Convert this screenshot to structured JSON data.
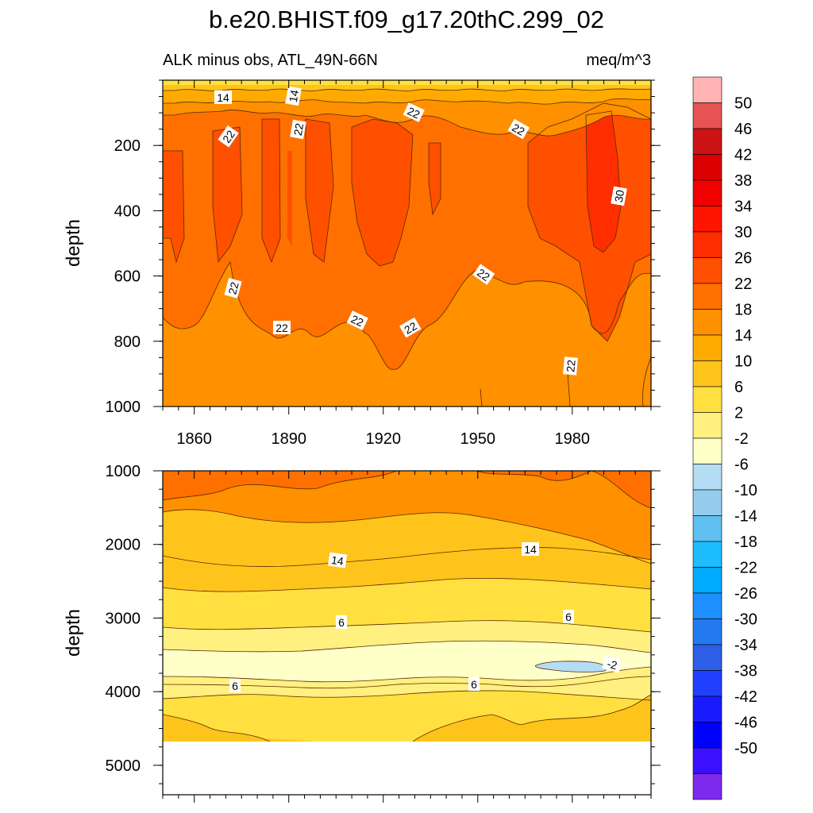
{
  "chart_data": {
    "type": "contour",
    "title": "b.e20.BHIST.f09_g17.20thC.299_02",
    "subtitle_left": "ALK minus obs, ATL_49N-66N",
    "subtitle_right": "meq/m^3",
    "units": "meq/m^3",
    "x_ticks": [
      "1860",
      "1890",
      "1920",
      "1950",
      "1980"
    ],
    "xlim": [
      1850,
      2005
    ],
    "upper_panel": {
      "ylabel": "depth",
      "ylim": [
        0,
        1000
      ],
      "y_ticks": [
        "200",
        "400",
        "600",
        "800",
        "1000"
      ],
      "contour_labels": [
        "14",
        "14",
        "22",
        "22",
        "22",
        "22",
        "30",
        "22",
        "22",
        "22",
        "22",
        "22",
        "22"
      ]
    },
    "lower_panel": {
      "ylabel": "depth",
      "ylim": [
        1000,
        5400
      ],
      "y_ticks": [
        "1000",
        "2000",
        "3000",
        "4000",
        "5000"
      ],
      "contour_labels": [
        "14",
        "14",
        "6",
        "6",
        "-2",
        "6",
        "6"
      ]
    },
    "colorbar": {
      "labels": [
        "50",
        "46",
        "42",
        "38",
        "34",
        "30",
        "26",
        "22",
        "18",
        "14",
        "10",
        "6",
        "2",
        "-2",
        "-6",
        "-10",
        "-14",
        "-18",
        "-22",
        "-26",
        "-30",
        "-34",
        "-38",
        "-42",
        "-46",
        "-50"
      ],
      "colors": [
        "#ffb3b3",
        "#e65454",
        "#cc1414",
        "#dd0000",
        "#f00000",
        "#ff1400",
        "#ff2e00",
        "#ff5000",
        "#ff7000",
        "#ff9000",
        "#ffaa00",
        "#ffc41c",
        "#ffe040",
        "#fff080",
        "#ffffc8",
        "#b4dcf4",
        "#96cdef",
        "#5fc0f0",
        "#1cbcff",
        "#00aaff",
        "#1e90ff",
        "#2478f0",
        "#2e5ee6",
        "#2040ff",
        "#1a1aff",
        "#0000ff",
        "#3a10ff",
        "#7d2aee"
      ]
    }
  }
}
